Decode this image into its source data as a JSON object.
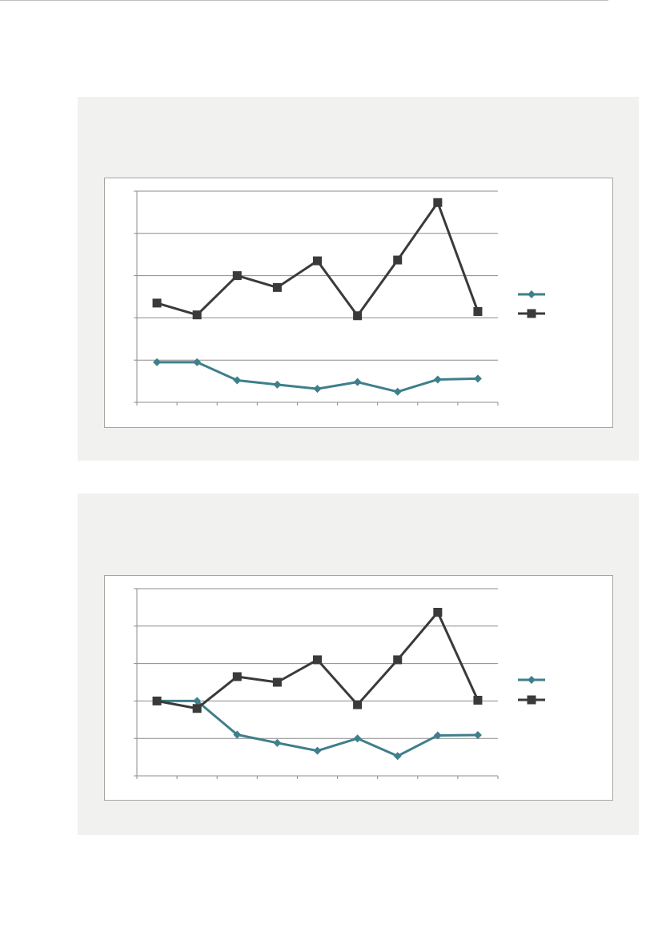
{
  "chart_data": [
    {
      "type": "line",
      "categories": [
        "",
        "",
        "",
        "",
        "",
        "",
        "",
        "",
        ""
      ],
      "ylim": [
        0,
        5
      ],
      "grid": true,
      "legend": "right",
      "series": [
        {
          "values": [
            0.95,
            0.95,
            0.52,
            0.42,
            0.32,
            0.48,
            0.25,
            0.54,
            0.56
          ],
          "color": "#3e7f8b",
          "marker": "diamond"
        },
        {
          "values": [
            2.35,
            2.07,
            3.0,
            2.72,
            3.35,
            2.05,
            3.37,
            4.73,
            2.15
          ],
          "color": "#3a3a3a",
          "marker": "square"
        }
      ]
    },
    {
      "type": "line",
      "categories": [
        "",
        "",
        "",
        "",
        "",
        "",
        "",
        "",
        ""
      ],
      "ylim": [
        0,
        5
      ],
      "grid": true,
      "legend": "right",
      "series": [
        {
          "values": [
            2.0,
            2.0,
            1.1,
            0.88,
            0.67,
            1.0,
            0.53,
            1.08,
            1.09
          ],
          "color": "#3e7f8b",
          "marker": "diamond"
        },
        {
          "values": [
            2.0,
            1.8,
            2.65,
            2.5,
            3.1,
            1.9,
            3.1,
            4.37,
            2.02
          ],
          "color": "#3a3a3a",
          "marker": "square"
        }
      ]
    }
  ]
}
